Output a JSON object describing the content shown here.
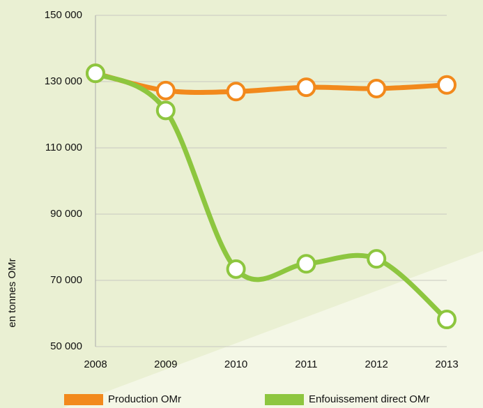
{
  "chart_data": {
    "type": "line",
    "ylabel": "en tonnes OMr",
    "x": [
      2008,
      2009,
      2010,
      2011,
      2012,
      2013
    ],
    "xlim": [
      2008,
      2013
    ],
    "xticks": [
      2008,
      2009,
      2010,
      2011,
      2012,
      2013
    ],
    "ylim": [
      50000,
      150000
    ],
    "yticks": [
      {
        "value": 50000,
        "label": "50 000"
      },
      {
        "value": 70000,
        "label": "70 000"
      },
      {
        "value": 90000,
        "label": "90 000"
      },
      {
        "value": 110000,
        "label": "110 000"
      },
      {
        "value": 130000,
        "label": "130 000"
      },
      {
        "value": 150000,
        "label": "150 000"
      }
    ],
    "grid": true,
    "legend": "bottom",
    "series": [
      {
        "name": "Production OMr",
        "color": "#f2891c",
        "values": [
          132500,
          127300,
          127000,
          128300,
          127900,
          129000
        ]
      },
      {
        "name": "Enfouissement direct OMr",
        "color": "#8dc63f",
        "values": [
          132500,
          121300,
          73400,
          75000,
          76500,
          58200
        ]
      }
    ]
  }
}
